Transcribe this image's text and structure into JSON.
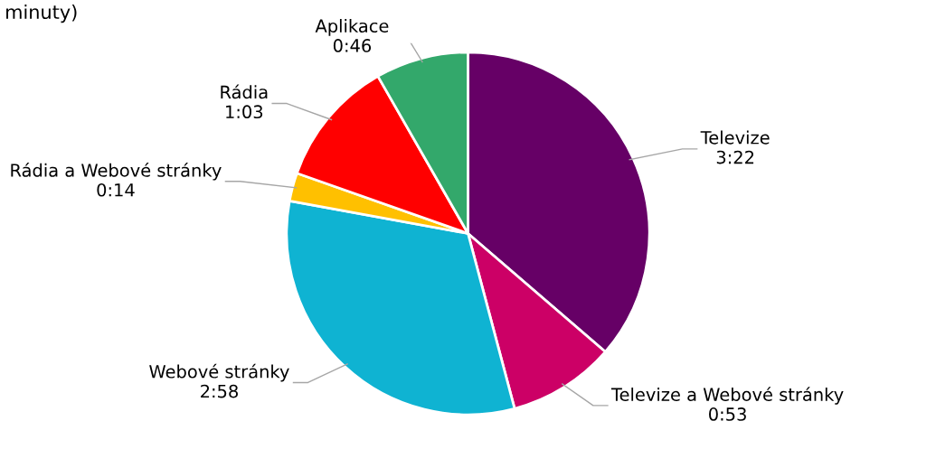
{
  "chart_data": {
    "type": "pie",
    "annotations": [
      "minuty)"
    ],
    "categories": [
      "Televize",
      "Televize a Webové stránky",
      "Webové stránky",
      "Rádia a Webové stránky",
      "Rádia",
      "Aplikace"
    ],
    "values": [
      202,
      53,
      178,
      14,
      63,
      46
    ],
    "value_labels": [
      "3:22",
      "0:53",
      "2:58",
      "0:14",
      "1:03",
      "0:46"
    ],
    "colors": [
      "#660066",
      "#cc0066",
      "#0fb3d2",
      "#ffc000",
      "#ff0000",
      "#33a86b"
    ]
  }
}
